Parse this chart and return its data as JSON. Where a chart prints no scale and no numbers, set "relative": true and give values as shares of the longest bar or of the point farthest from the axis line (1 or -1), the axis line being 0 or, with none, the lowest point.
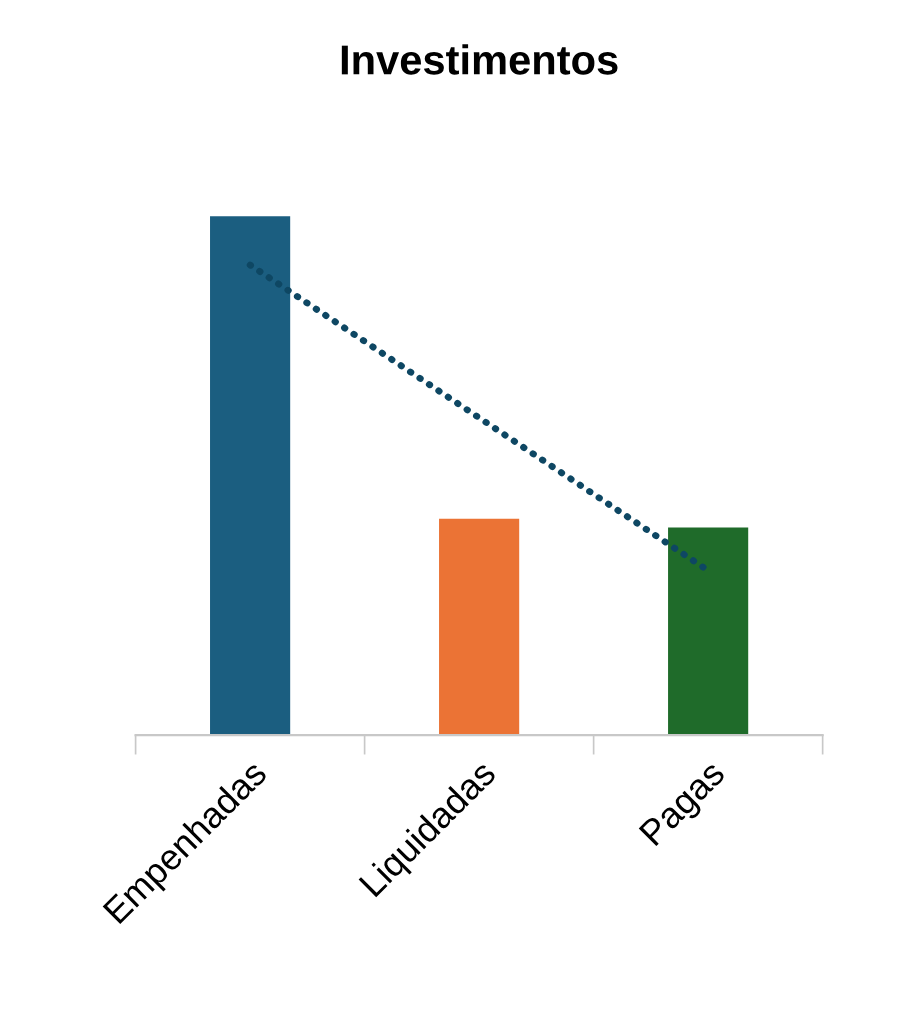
{
  "chart_data": {
    "type": "bar",
    "title": "Investimentos",
    "relative": true,
    "categories": [
      "Empenhadas",
      "Liquidadas",
      "Pagas"
    ],
    "series": [
      {
        "colors": [
          "#1b5e80",
          "#eb7335",
          "#1f6b2a"
        ],
        "values": [
          1,
          0.417,
          0.4
        ]
      },
      {
        "type": "line",
        "x": [
          "Empenhadas",
          "Pagas"
        ],
        "values": [
          0.906,
          0.317
        ],
        "color": "#0e4763",
        "line_style": "dotted"
      }
    ],
    "grid": false,
    "legend": false
  }
}
